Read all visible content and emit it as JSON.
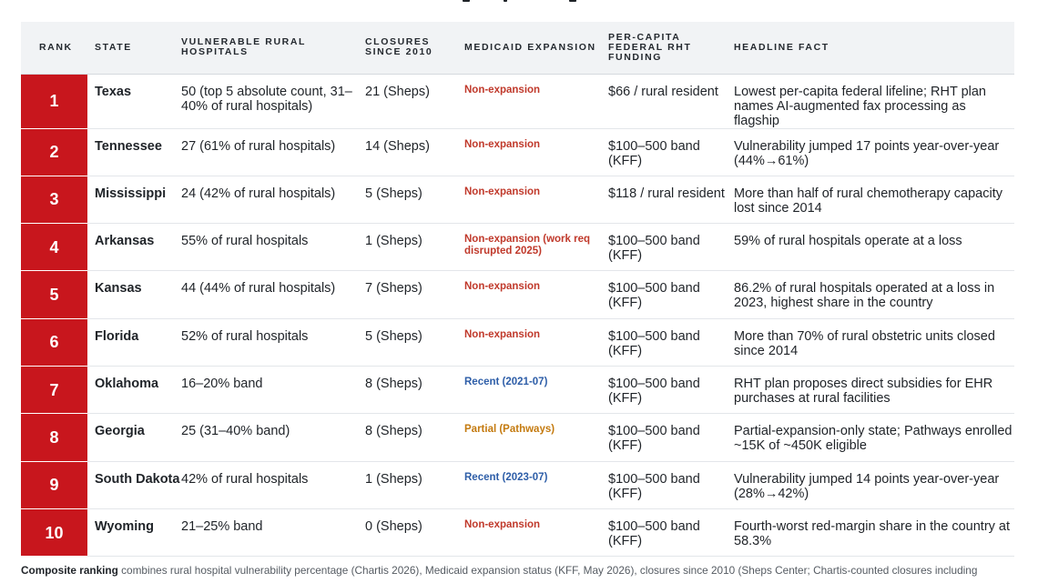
{
  "table": {
    "headers": {
      "rank": "RANK",
      "state": "STATE",
      "vulnerable": [
        "VULNERABLE RURAL",
        "HOSPITALS"
      ],
      "closures": [
        "CLOSURES",
        "SINCE 2010"
      ],
      "medicaid": "MEDICAID EXPANSION",
      "funding": [
        "PER-CAPITA",
        "FEDERAL RHT",
        "FUNDING"
      ],
      "fact": "HEADLINE FACT"
    },
    "rows": [
      {
        "rank": "1",
        "state": "Texas",
        "vulnerable": "50 (top 5 absolute count, 31–40% of rural hospitals)",
        "closures": "21 (Sheps)",
        "medicaid": "Non-expansion",
        "medicaid_type": "non",
        "funding": "$66 / rural resident",
        "fact": "Lowest per-capita federal lifeline; RHT plan names AI-augmented fax processing as flagship"
      },
      {
        "rank": "2",
        "state": "Tennessee",
        "vulnerable": "27 (61% of rural hospitals)",
        "closures": "14 (Sheps)",
        "medicaid": "Non-expansion",
        "medicaid_type": "non",
        "funding": "$100–500 band (KFF)",
        "fact": "Vulnerability jumped 17 points year-over-year (44%→61%)"
      },
      {
        "rank": "3",
        "state": "Mississippi",
        "vulnerable": "24 (42% of rural hospitals)",
        "closures": "5 (Sheps)",
        "medicaid": "Non-expansion",
        "medicaid_type": "non",
        "funding": "$118 / rural resident",
        "fact": "More than half of rural chemotherapy capacity lost since 2014"
      },
      {
        "rank": "4",
        "state": "Arkansas",
        "vulnerable": "55% of rural hospitals",
        "closures": "1 (Sheps)",
        "medicaid": "Non-expansion (work req disrupted 2025)",
        "medicaid_type": "non",
        "funding": "$100–500 band (KFF)",
        "fact": "59% of rural hospitals operate at a loss"
      },
      {
        "rank": "5",
        "state": "Kansas",
        "vulnerable": "44 (44% of rural hospitals)",
        "closures": "7 (Sheps)",
        "medicaid": "Non-expansion",
        "medicaid_type": "non",
        "funding": "$100–500 band (KFF)",
        "fact": "86.2% of rural hospitals operated at a loss in 2023, highest share in the country"
      },
      {
        "rank": "6",
        "state": "Florida",
        "vulnerable": "52% of rural hospitals",
        "closures": "5 (Sheps)",
        "medicaid": "Non-expansion",
        "medicaid_type": "non",
        "funding": "$100–500 band (KFF)",
        "fact": "More than 70% of rural obstetric units closed since 2014"
      },
      {
        "rank": "7",
        "state": "Oklahoma",
        "vulnerable": "16–20% band",
        "closures": "8 (Sheps)",
        "medicaid": "Recent (2021-07)",
        "medicaid_type": "recent",
        "funding": "$100–500 band (KFF)",
        "fact": "RHT plan proposes direct subsidies for EHR purchases at rural facilities"
      },
      {
        "rank": "8",
        "state": "Georgia",
        "vulnerable": "25 (31–40% band)",
        "closures": "8 (Sheps)",
        "medicaid": "Partial (Pathways)",
        "medicaid_type": "partial",
        "funding": "$100–500 band (KFF)",
        "fact": "Partial-expansion-only state; Pathways enrolled ~15K of ~450K eligible"
      },
      {
        "rank": "9",
        "state": "South Dakota",
        "vulnerable": "42% of rural hospitals",
        "closures": "1 (Sheps)",
        "medicaid": "Recent (2023-07)",
        "medicaid_type": "recent",
        "funding": "$100–500 band (KFF)",
        "fact": "Vulnerability jumped 14 points year-over-year (28%→42%)"
      },
      {
        "rank": "10",
        "state": "Wyoming",
        "vulnerable": "21–25% band",
        "closures": "0 (Sheps)",
        "medicaid": "Non-expansion",
        "medicaid_type": "non",
        "funding": "$100–500 band (KFF)",
        "fact": "Fourth-worst red-margin share in the country at 58.3%"
      }
    ]
  },
  "footer": {
    "label": "Composite ranking",
    "text": "combines rural hospital vulnerability percentage (Chartis 2026), Medicaid expansion status (KFF, May 2026), closures since 2010 (Sheps Center; Chartis-counted closures including"
  },
  "colors": {
    "rank_red": "#c8161d",
    "non_expansion": "#c0392b",
    "recent_expansion": "#2e5ea8",
    "partial_expansion": "#c47a0f"
  }
}
